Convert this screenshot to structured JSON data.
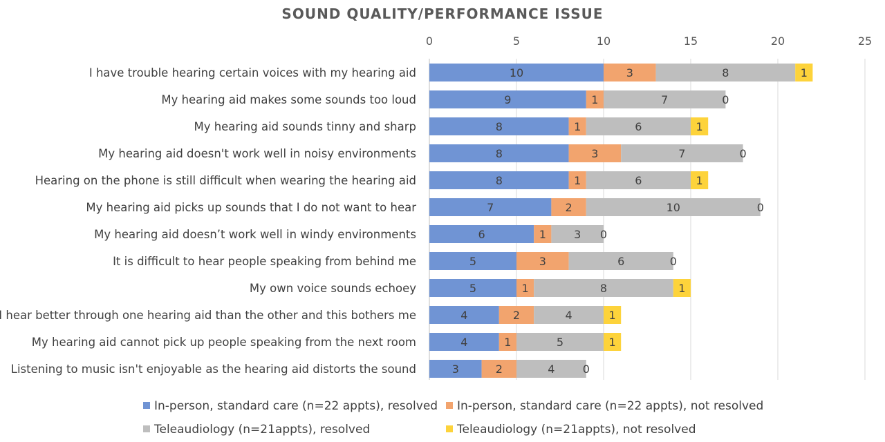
{
  "chart_data": {
    "type": "bar",
    "orientation": "horizontal",
    "stacked": true,
    "title": "SOUND QUALITY/PERFORMANCE ISSUE",
    "xlim": [
      0,
      25
    ],
    "x_ticks": [
      "0",
      "5",
      "10",
      "15",
      "20",
      "25"
    ],
    "x_axis_position": "top",
    "grid": true,
    "legend_position": "bottom",
    "categories": [
      "I have trouble hearing certain voices with my hearing aid",
      "My hearing aid makes some sounds too loud",
      "My hearing aid sounds tinny and sharp",
      "My hearing aid doesn't work well in noisy environments",
      "Hearing on the phone is still difficult when wearing the hearing aid",
      "My hearing aid picks up sounds that I do not want to hear",
      "My hearing aid doesn’t work well in windy environments",
      "It is difficult to hear people speaking from behind me",
      "My own voice sounds echoey",
      "I hear better through one hearing aid than the other and this bothers me",
      "My hearing aid cannot pick up people speaking from the next room",
      "Listening to music isn't enjoyable as the hearing aid distorts the sound"
    ],
    "series": [
      {
        "name": "In-person, standard care (n=22 appts), resolved",
        "color": "#7094D4",
        "values": [
          10,
          9,
          8,
          8,
          8,
          7,
          6,
          5,
          5,
          4,
          4,
          3
        ]
      },
      {
        "name": "In-person, standard care (n=22 appts), not resolved",
        "color": "#F2A46E",
        "values": [
          3,
          1,
          1,
          3,
          1,
          2,
          1,
          3,
          1,
          2,
          1,
          2
        ]
      },
      {
        "name": "Teleaudiology (n=21appts), resolved",
        "color": "#BEBEBE",
        "values": [
          8,
          7,
          6,
          7,
          6,
          10,
          3,
          6,
          8,
          4,
          5,
          4
        ]
      },
      {
        "name": "Teleaudiology (n=21appts), not resolved",
        "color": "#FDD33B",
        "values": [
          1,
          0,
          1,
          0,
          1,
          0,
          0,
          0,
          1,
          1,
          1,
          0
        ]
      }
    ]
  }
}
